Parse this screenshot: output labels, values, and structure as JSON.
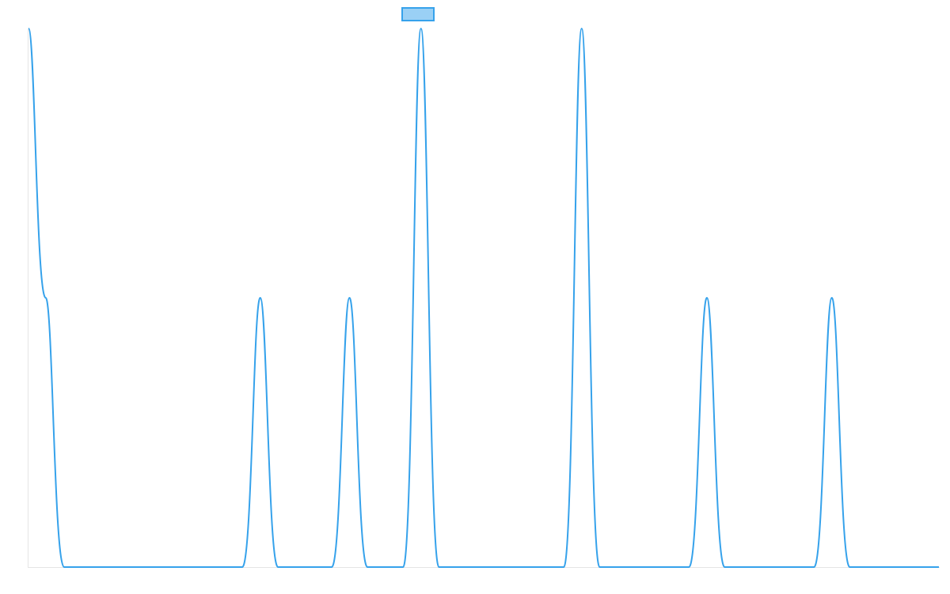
{
  "chart_data": {
    "type": "line",
    "title": "",
    "xlabel": "",
    "ylabel": "",
    "grid": false,
    "legend": {
      "position": "top-center",
      "label": "",
      "fill_color": "#9ad0f5",
      "border_color": "#36a2eb"
    },
    "line_color": "#36a2eb",
    "xlim": [
      0,
      1
    ],
    "ylim": [
      0,
      1
    ],
    "series": [
      {
        "points": [
          [
            0.0,
            1.0
          ],
          [
            0.0189,
            0.5
          ],
          [
            0.0392,
            0.0
          ],
          [
            0.2348,
            0.0
          ],
          [
            0.2545,
            0.5
          ],
          [
            0.2741,
            0.0
          ],
          [
            0.333,
            0.0
          ],
          [
            0.3526,
            0.5
          ],
          [
            0.3723,
            0.0
          ],
          [
            0.4115,
            0.0
          ],
          [
            0.4311,
            1.0
          ],
          [
            0.4508,
            0.0
          ],
          [
            0.588,
            0.0
          ],
          [
            0.6076,
            1.0
          ],
          [
            0.6273,
            0.0
          ],
          [
            0.7254,
            0.0
          ],
          [
            0.7451,
            0.5
          ],
          [
            0.7647,
            0.0
          ],
          [
            0.8628,
            0.0
          ],
          [
            0.8824,
            0.5
          ],
          [
            0.9021,
            0.0
          ],
          [
            1.0,
            0.0
          ]
        ]
      }
    ]
  }
}
